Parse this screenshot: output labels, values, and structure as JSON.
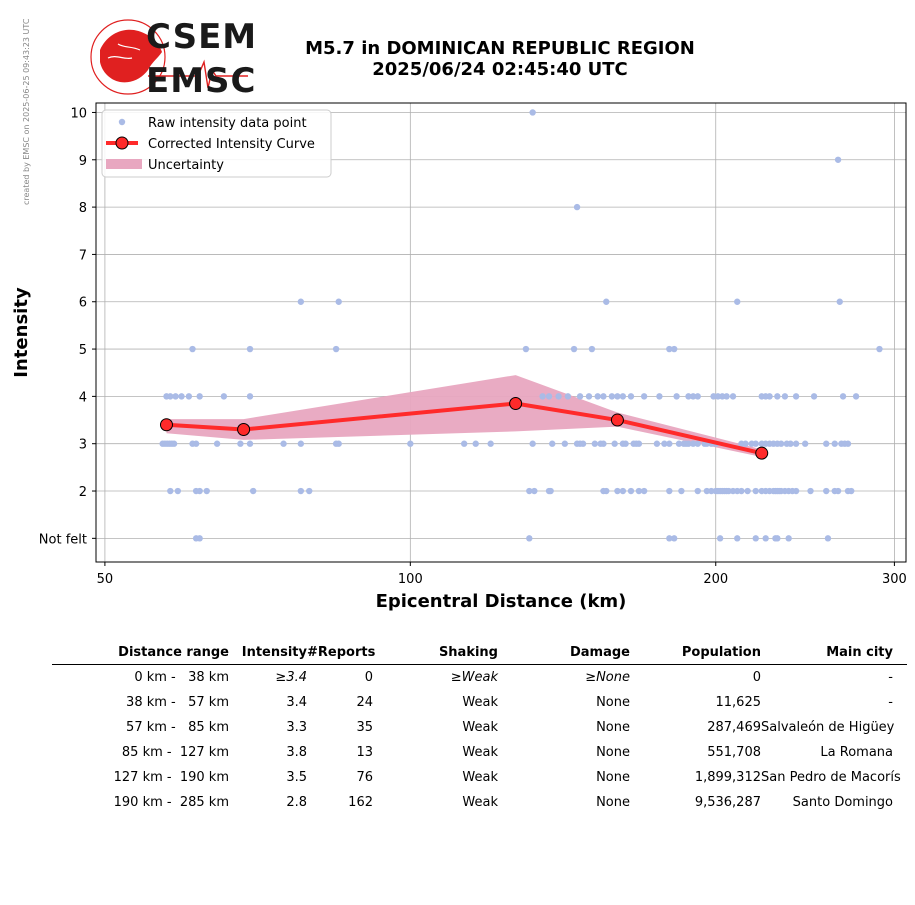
{
  "credit": "created by EMSC on 2025-06-25 09:43:23 UTC",
  "logo": {
    "line1": "CSEM",
    "line2": "EMSC"
  },
  "title": {
    "line1": "M5.7 in DOMINICAN REPUBLIC REGION",
    "line2": "2025/06/24 02:45:40 UTC"
  },
  "colors": {
    "raw": "#aabbe6",
    "curve": "#ff2a2a",
    "marker_edge": "#8b0000",
    "uncertainty": "#e8a7c0",
    "grid": "#b0b0b0"
  },
  "chart_data": {
    "type": "scatter",
    "xlabel": "Epicentral Distance (km)",
    "ylabel": "Intensity",
    "xscale": "log",
    "xlim": [
      49,
      308
    ],
    "ylim": [
      0.5,
      10.2
    ],
    "xticks": [
      50,
      100,
      200,
      300
    ],
    "yticks": [
      {
        "v": 1,
        "label": "Not felt"
      },
      {
        "v": 2,
        "label": "2"
      },
      {
        "v": 3,
        "label": "3"
      },
      {
        "v": 4,
        "label": "4"
      },
      {
        "v": 5,
        "label": "5"
      },
      {
        "v": 6,
        "label": "6"
      },
      {
        "v": 7,
        "label": "7"
      },
      {
        "v": 8,
        "label": "8"
      },
      {
        "v": 9,
        "label": "9"
      },
      {
        "v": 10,
        "label": "10"
      }
    ],
    "grid": true,
    "legend_position": "top-left",
    "legend": [
      "Raw intensity data point",
      "Corrected Intensity Curve",
      "Uncertainty"
    ],
    "raw_points": [
      [
        57,
        3
      ],
      [
        57.3,
        3
      ],
      [
        57.6,
        3
      ],
      [
        57.9,
        3
      ],
      [
        58.2,
        3
      ],
      [
        58.5,
        3
      ],
      [
        61,
        3
      ],
      [
        61.5,
        3
      ],
      [
        64.5,
        3
      ],
      [
        68,
        3
      ],
      [
        69.5,
        3
      ],
      [
        75,
        3
      ],
      [
        78,
        3
      ],
      [
        84.5,
        3
      ],
      [
        85,
        3
      ],
      [
        100,
        3
      ],
      [
        113,
        3
      ],
      [
        116,
        3
      ],
      [
        120,
        3
      ],
      [
        132,
        3
      ],
      [
        138,
        3
      ],
      [
        142,
        3
      ],
      [
        146,
        3
      ],
      [
        147,
        3
      ],
      [
        148,
        3
      ],
      [
        152,
        3
      ],
      [
        154,
        3
      ],
      [
        155,
        3
      ],
      [
        159,
        3
      ],
      [
        162,
        3
      ],
      [
        163,
        3
      ],
      [
        166,
        3
      ],
      [
        167,
        3
      ],
      [
        168,
        3
      ],
      [
        175,
        3
      ],
      [
        178,
        3
      ],
      [
        180,
        3
      ],
      [
        184,
        3
      ],
      [
        186,
        3
      ],
      [
        187,
        3
      ],
      [
        188,
        3
      ],
      [
        190,
        3
      ],
      [
        192,
        3
      ],
      [
        195,
        3
      ],
      [
        196,
        3
      ],
      [
        198,
        3
      ],
      [
        200,
        3
      ],
      [
        212,
        3
      ],
      [
        214,
        3
      ],
      [
        217,
        3
      ],
      [
        219,
        3
      ],
      [
        222,
        3
      ],
      [
        224,
        3
      ],
      [
        226,
        3
      ],
      [
        228,
        3
      ],
      [
        230,
        3
      ],
      [
        232,
        3
      ],
      [
        235,
        3
      ],
      [
        237,
        3
      ],
      [
        240,
        3
      ],
      [
        245,
        3
      ],
      [
        257,
        3
      ],
      [
        262,
        3
      ],
      [
        266,
        3
      ],
      [
        268,
        3
      ],
      [
        270,
        3
      ],
      [
        57.5,
        4
      ],
      [
        58,
        4
      ],
      [
        58.7,
        4
      ],
      [
        59.5,
        4
      ],
      [
        60.5,
        4
      ],
      [
        62,
        4
      ],
      [
        65.5,
        4
      ],
      [
        69.5,
        4
      ],
      [
        135,
        4
      ],
      [
        137,
        4
      ],
      [
        140,
        4
      ],
      [
        143,
        4
      ],
      [
        147,
        4
      ],
      [
        150,
        4
      ],
      [
        153,
        4
      ],
      [
        155,
        4
      ],
      [
        158,
        4
      ],
      [
        160,
        4
      ],
      [
        162,
        4
      ],
      [
        165,
        4
      ],
      [
        170,
        4
      ],
      [
        176,
        4
      ],
      [
        183,
        4
      ],
      [
        188,
        4
      ],
      [
        190,
        4
      ],
      [
        192,
        4
      ],
      [
        199,
        4
      ],
      [
        201,
        4
      ],
      [
        203,
        4
      ],
      [
        205,
        4
      ],
      [
        208,
        4
      ],
      [
        222,
        4
      ],
      [
        224,
        4
      ],
      [
        226,
        4
      ],
      [
        230,
        4
      ],
      [
        234,
        4
      ],
      [
        240,
        4
      ],
      [
        250,
        4
      ],
      [
        267,
        4
      ],
      [
        275,
        4
      ],
      [
        61,
        5
      ],
      [
        69.5,
        5
      ],
      [
        84.5,
        5
      ],
      [
        130,
        5
      ],
      [
        145,
        5
      ],
      [
        151,
        5
      ],
      [
        180,
        5
      ],
      [
        182,
        5
      ],
      [
        290,
        5
      ],
      [
        78,
        6
      ],
      [
        85,
        6
      ],
      [
        156,
        6
      ],
      [
        210,
        6
      ],
      [
        265,
        6
      ],
      [
        146,
        8
      ],
      [
        264,
        9
      ],
      [
        132,
        10
      ],
      [
        58,
        2
      ],
      [
        59,
        2
      ],
      [
        61.5,
        2
      ],
      [
        62,
        2
      ],
      [
        63,
        2
      ],
      [
        70,
        2
      ],
      [
        78,
        2
      ],
      [
        79.5,
        2
      ],
      [
        131,
        2
      ],
      [
        132.5,
        2
      ],
      [
        137,
        2
      ],
      [
        137.5,
        2
      ],
      [
        155,
        2
      ],
      [
        156,
        2
      ],
      [
        160,
        2
      ],
      [
        162,
        2
      ],
      [
        165,
        2
      ],
      [
        168,
        2
      ],
      [
        170,
        2
      ],
      [
        180,
        2
      ],
      [
        185,
        2
      ],
      [
        192,
        2
      ],
      [
        196,
        2
      ],
      [
        198,
        2
      ],
      [
        200,
        2
      ],
      [
        201,
        2
      ],
      [
        202,
        2
      ],
      [
        203,
        2
      ],
      [
        204,
        2
      ],
      [
        205,
        2
      ],
      [
        206,
        2
      ],
      [
        208,
        2
      ],
      [
        210,
        2
      ],
      [
        212,
        2
      ],
      [
        215,
        2
      ],
      [
        219,
        2
      ],
      [
        222,
        2
      ],
      [
        224,
        2
      ],
      [
        226,
        2
      ],
      [
        228,
        2
      ],
      [
        229,
        2
      ],
      [
        230,
        2
      ],
      [
        231,
        2
      ],
      [
        232,
        2
      ],
      [
        234,
        2
      ],
      [
        236,
        2
      ],
      [
        238,
        2
      ],
      [
        240,
        2
      ],
      [
        248,
        2
      ],
      [
        257,
        2
      ],
      [
        262,
        2
      ],
      [
        264,
        2
      ],
      [
        270,
        2
      ],
      [
        272,
        2
      ],
      [
        61.5,
        1
      ],
      [
        62,
        1
      ],
      [
        131,
        1
      ],
      [
        180,
        1
      ],
      [
        182,
        1
      ],
      [
        202,
        1
      ],
      [
        210,
        1
      ],
      [
        219,
        1
      ],
      [
        224,
        1
      ],
      [
        229,
        1
      ],
      [
        230,
        1
      ],
      [
        236,
        1
      ],
      [
        258,
        1
      ]
    ],
    "curve": [
      [
        57.5,
        3.4
      ],
      [
        68.5,
        3.3
      ],
      [
        127,
        3.85
      ],
      [
        160,
        3.5
      ],
      [
        222,
        2.8
      ]
    ],
    "uncertainty_upper": [
      [
        57.5,
        3.52
      ],
      [
        68.5,
        3.52
      ],
      [
        127,
        4.45
      ],
      [
        160,
        3.66
      ],
      [
        222,
        2.88
      ]
    ],
    "uncertainty_lower": [
      [
        57.5,
        3.22
      ],
      [
        68.5,
        3.08
      ],
      [
        127,
        3.26
      ],
      [
        160,
        3.36
      ],
      [
        222,
        2.72
      ]
    ]
  },
  "table": {
    "headers": [
      "Distance range",
      "Intensity",
      "#Reports",
      "Shaking",
      "Damage",
      "Population",
      "Main city"
    ],
    "rows": [
      {
        "range": "0 km -   38 km",
        "intensity": "≥3.4",
        "reports": "0",
        "shaking": "≥Weak",
        "damage": "≥None",
        "population": "0",
        "city": "-"
      },
      {
        "range": "38 km -   57 km",
        "intensity": "3.4",
        "reports": "24",
        "shaking": "Weak",
        "damage": "None",
        "population": "11,625",
        "city": "-"
      },
      {
        "range": "57 km -   85 km",
        "intensity": "3.3",
        "reports": "35",
        "shaking": "Weak",
        "damage": "None",
        "population": "287,469",
        "city": "Salvaleón de Higüey"
      },
      {
        "range": "85 km -  127 km",
        "intensity": "3.8",
        "reports": "13",
        "shaking": "Weak",
        "damage": "None",
        "population": "551,708",
        "city": "La Romana"
      },
      {
        "range": "127 km -  190 km",
        "intensity": "3.5",
        "reports": "76",
        "shaking": "Weak",
        "damage": "None",
        "population": "1,899,312",
        "city": "San Pedro de Macorís"
      },
      {
        "range": "190 km -  285 km",
        "intensity": "2.8",
        "reports": "162",
        "shaking": "Weak",
        "damage": "None",
        "population": "9,536,287",
        "city": "Santo Domingo"
      }
    ]
  }
}
